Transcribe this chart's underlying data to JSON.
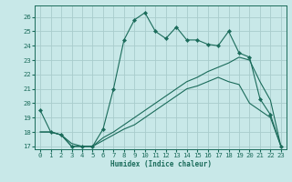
{
  "xlabel": "Humidex (Indice chaleur)",
  "bg_color": "#c8e8e8",
  "grid_color": "#a8cccc",
  "line_color": "#1a6b5a",
  "xlim": [
    -0.5,
    23.5
  ],
  "ylim": [
    16.8,
    26.8
  ],
  "yticks": [
    17,
    18,
    19,
    20,
    21,
    22,
    23,
    24,
    25,
    26
  ],
  "xticks": [
    0,
    1,
    2,
    3,
    4,
    5,
    6,
    7,
    8,
    9,
    10,
    11,
    12,
    13,
    14,
    15,
    16,
    17,
    18,
    19,
    20,
    21,
    22,
    23
  ],
  "line1_x": [
    0,
    1,
    2,
    3,
    4,
    5,
    6,
    7,
    8,
    9,
    10,
    11,
    12,
    13,
    14,
    15,
    16,
    17,
    18,
    19,
    20,
    21,
    22,
    23
  ],
  "line1_y": [
    19.5,
    18.0,
    17.8,
    17.0,
    17.0,
    17.0,
    18.2,
    21.0,
    24.4,
    25.8,
    26.3,
    25.0,
    24.5,
    25.3,
    24.4,
    24.4,
    24.1,
    24.0,
    25.0,
    23.5,
    23.2,
    20.3,
    19.2,
    17.0
  ],
  "line2_x": [
    0,
    1,
    2,
    3,
    4,
    5,
    6,
    7,
    8,
    9,
    10,
    11,
    12,
    13,
    14,
    15,
    16,
    17,
    18,
    19,
    20,
    21,
    22,
    23
  ],
  "line2_y": [
    18.0,
    18.0,
    17.8,
    17.2,
    17.0,
    17.0,
    17.6,
    18.0,
    18.5,
    19.0,
    19.5,
    20.0,
    20.5,
    21.0,
    21.5,
    21.8,
    22.2,
    22.5,
    22.8,
    23.2,
    23.0,
    21.5,
    20.2,
    17.0
  ],
  "line3_x": [
    0,
    1,
    2,
    3,
    4,
    5,
    6,
    7,
    8,
    9,
    10,
    11,
    12,
    13,
    14,
    15,
    16,
    17,
    18,
    19,
    20,
    21,
    22,
    23
  ],
  "line3_y": [
    18.0,
    18.0,
    17.8,
    17.0,
    17.0,
    17.0,
    17.4,
    17.8,
    18.2,
    18.5,
    19.0,
    19.5,
    20.0,
    20.5,
    21.0,
    21.2,
    21.5,
    21.8,
    21.5,
    21.3,
    20.0,
    19.5,
    19.0,
    17.0
  ]
}
